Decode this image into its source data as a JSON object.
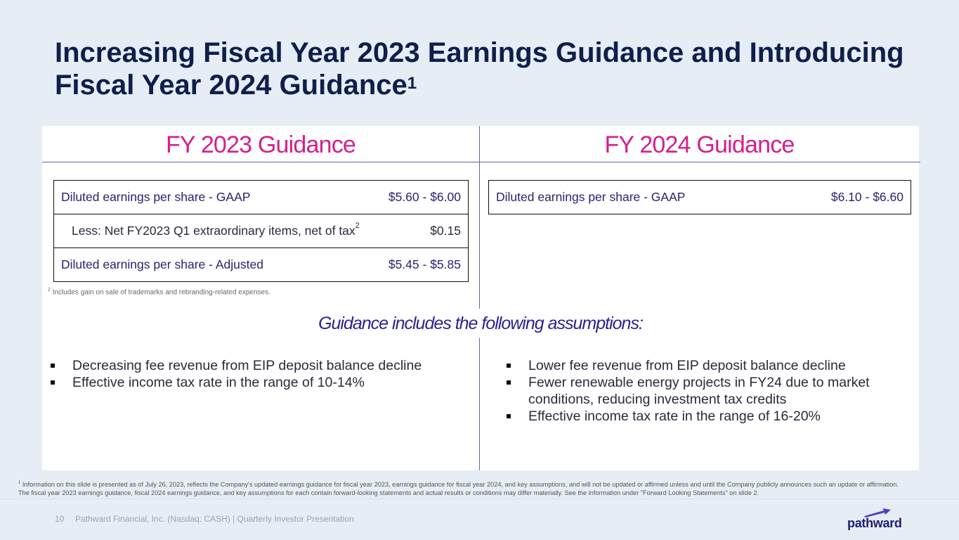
{
  "slide": {
    "title": "Increasing Fiscal Year 2023 Earnings Guidance and Introducing Fiscal Year 2024 Guidance",
    "title_footnote_marker": "1",
    "colors": {
      "title": "#0f1f4b",
      "heading": "#d41f8d",
      "accent": "#2c2290"
    }
  },
  "fy2023": {
    "heading": "FY 2023 Guidance",
    "rows": [
      {
        "label": "Diluted earnings per share - GAAP",
        "sup": "",
        "value": "$5.60 - $6.00"
      },
      {
        "label": "Less: Net FY2023 Q1 extraordinary items, net of tax",
        "sup": "2",
        "value": "$0.15"
      },
      {
        "label": "Diluted earnings per share - Adjusted",
        "sup": "",
        "value": "$5.45 - $5.85"
      }
    ],
    "footnote_marker": "2",
    "footnote": "Includes gain on sale of trademarks and rebranding-related expenses.",
    "assumptions": [
      "Decreasing fee revenue from EIP deposit balance decline",
      "Effective income tax rate in the range of 10-14%"
    ]
  },
  "fy2024": {
    "heading": "FY 2024 Guidance",
    "rows": [
      {
        "label": "Diluted earnings per share - GAAP",
        "value": "$6.10 - $6.60"
      }
    ],
    "assumptions": [
      "Lower fee revenue from EIP deposit balance decline",
      "Fewer renewable energy projects in FY24 due to market conditions, reducing investment tax credits",
      "Effective income tax rate in the range of 16-20%"
    ]
  },
  "assumptions_heading": "Guidance includes the following assumptions:",
  "footer": {
    "footnote_marker": "1",
    "footnote_line1": "Information on this slide is presented as of July 26, 2023, reflects the Company's updated earnings guidance for fiscal year 2023, earnings guidance for fiscal year 2024, and key assumptions, and will not be updated or affirmed unless and until the Company publicly announces such an update or affirmation.",
    "footnote_line2": "The fiscal year 2023 earnings guidance, fiscal 2024 earnings guidance, and key assumptions for each contain forward-looking statements and actual results or conditions may differ materially. See the information under \"Forward Looking Statements\" on slide 2.",
    "page_number": "10",
    "text": "Pathward Financial, Inc. (Nasdaq: CASH) | Quarterly Investor Presentation",
    "logo_text": "pathward"
  }
}
